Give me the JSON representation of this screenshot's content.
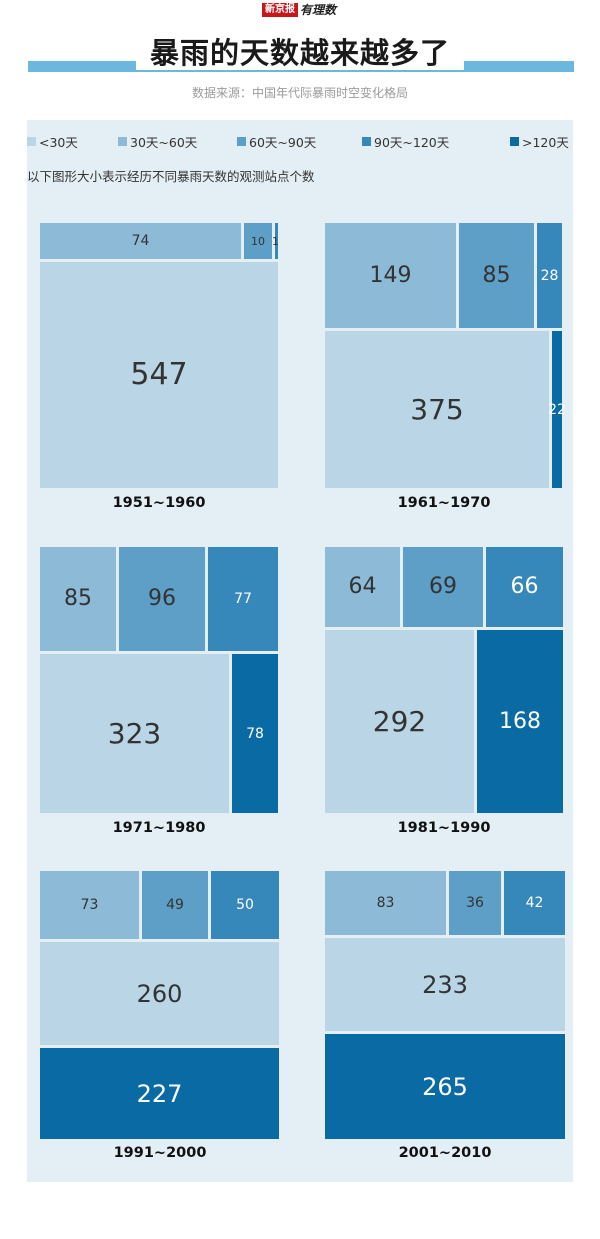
{
  "brand": {
    "part1": "新京报",
    "part2": "有理数"
  },
  "title": "暴雨的天数越来越多了",
  "source": "数据来源：中国年代际暴雨时空变化格局",
  "legend": [
    {
      "label": "<30天",
      "color": "#bad6e6"
    },
    {
      "label": "30天~60天",
      "color": "#8dbad7"
    },
    {
      "label": "60天~90天",
      "color": "#5d9fc6"
    },
    {
      "label": "90天~120天",
      "color": "#3688ba"
    },
    {
      "label": ">120天",
      "color": "#0a6aa3"
    }
  ],
  "note": "以下图形大小表示经历不同暴雨天数的观测站点个数",
  "chart_data": {
    "type": "treemap",
    "categories": [
      "<30天",
      "30天~60天",
      "60天~90天",
      "90天~120天",
      ">120天"
    ],
    "series": [
      {
        "name": "1951~1960",
        "values": [
          547,
          74,
          10,
          1,
          0
        ]
      },
      {
        "name": "1961~1970",
        "values": [
          375,
          149,
          85,
          28,
          22
        ]
      },
      {
        "name": "1971~1980",
        "values": [
          323,
          85,
          96,
          77,
          78
        ]
      },
      {
        "name": "1981~1990",
        "values": [
          292,
          64,
          69,
          66,
          168
        ]
      },
      {
        "name": "1991~2000",
        "values": [
          260,
          73,
          49,
          50,
          227
        ]
      },
      {
        "name": "2001~2010",
        "values": [
          233,
          83,
          36,
          42,
          265
        ]
      }
    ]
  }
}
